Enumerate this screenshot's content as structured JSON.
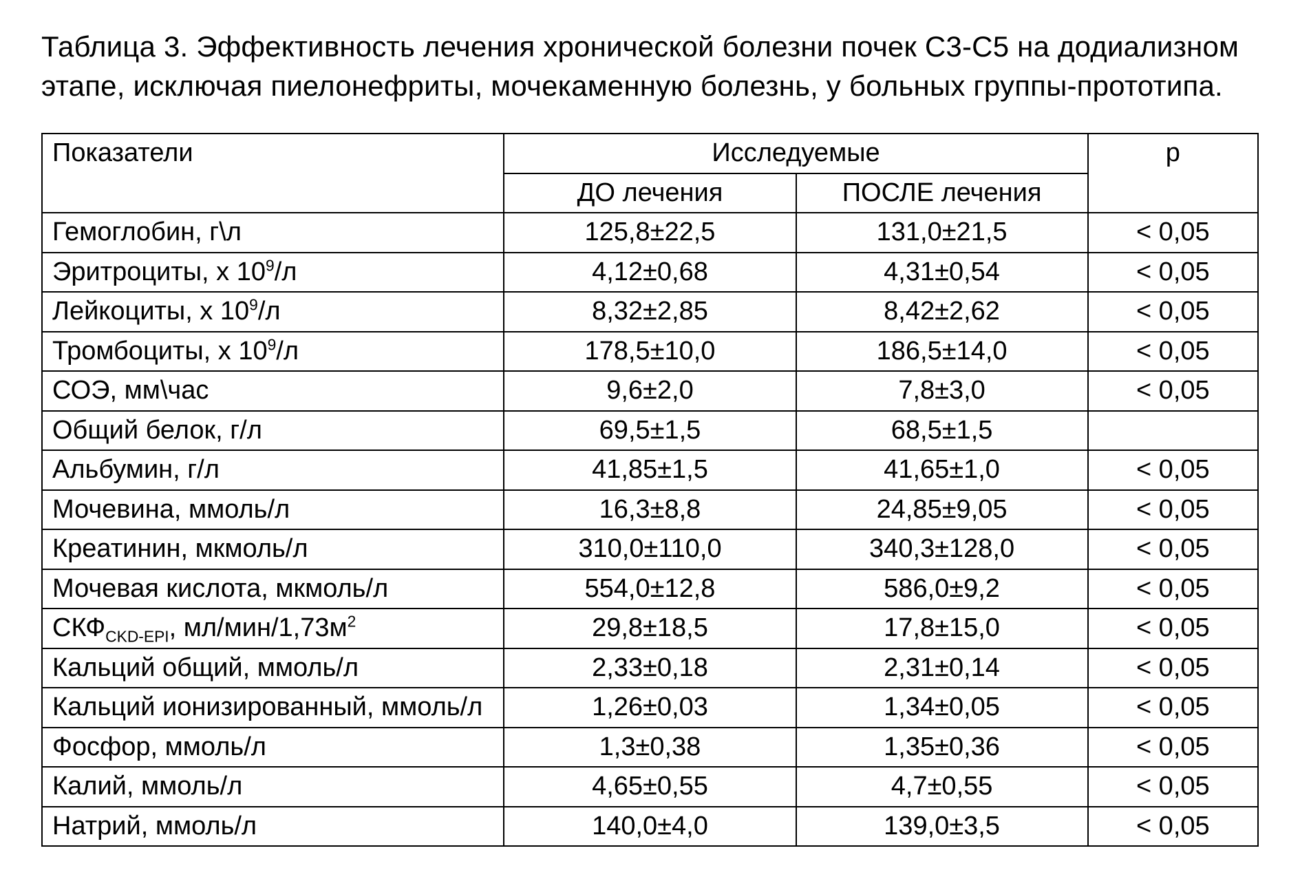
{
  "title": "Таблица 3. Эффективность лечения хронической болезни почек С3-С5 на додиализном этапе, исключая пиелонефриты, мочекаменную болезнь, у больных группы-прототипа.",
  "table": {
    "type": "table",
    "columns": {
      "label": "Показатели",
      "group": "Исследуемые",
      "before": "ДО лечения",
      "after": "ПОСЛЕ лечения",
      "p": "p"
    },
    "rows": [
      {
        "label_html": "Гемоглобин, г\\л",
        "before": "125,8±22,5",
        "after": "131,0±21,5",
        "p": "< 0,05"
      },
      {
        "label_html": "Эритроциты, х 10<sup>9</sup>/л",
        "before": "4,12±0,68",
        "after": "4,31±0,54",
        "p": "< 0,05"
      },
      {
        "label_html": "Лейкоциты, х 10<sup>9</sup>/л",
        "before": "8,32±2,85",
        "after": "8,42±2,62",
        "p": "< 0,05"
      },
      {
        "label_html": "Тромбоциты, х 10<sup>9</sup>/л",
        "before": "178,5±10,0",
        "after": "186,5±14,0",
        "p": "< 0,05"
      },
      {
        "label_html": "СОЭ, мм\\час",
        "before": "9,6±2,0",
        "after": "7,8±3,0",
        "p": "< 0,05"
      },
      {
        "label_html": "Общий белок, г/л",
        "before": "69,5±1,5",
        "after": "68,5±1,5",
        "p": ""
      },
      {
        "label_html": "Альбумин, г/л",
        "before": "41,85±1,5",
        "after": "41,65±1,0",
        "p": "< 0,05"
      },
      {
        "label_html": "Мочевина, ммоль/л",
        "before": "16,3±8,8",
        "after": "24,85±9,05",
        "p": "< 0,05"
      },
      {
        "label_html": "Креатинин, мкмоль/л",
        "before": "310,0±110,0",
        "after": "340,3±128,0",
        "p": "< 0,05"
      },
      {
        "label_html": "Мочевая кислота, мкмоль/л",
        "before": "554,0±12,8",
        "after": "586,0±9,2",
        "p": "< 0,05"
      },
      {
        "label_html": "СКФ<sub>CKD-EPI</sub>, мл/мин/1,73м<sup>2</sup>",
        "before": "29,8±18,5",
        "after": "17,8±15,0",
        "p": "< 0,05"
      },
      {
        "label_html": "Кальций общий, ммоль/л",
        "before": "2,33±0,18",
        "after": "2,31±0,14",
        "p": "< 0,05"
      },
      {
        "label_html": "Кальций ионизированный, ммоль/л",
        "before": "1,26±0,03",
        "after": "1,34±0,05",
        "p": "< 0,05"
      },
      {
        "label_html": "Фосфор, ммоль/л",
        "before": "1,3±0,38",
        "after": "1,35±0,36",
        "p": "< 0,05"
      },
      {
        "label_html": "Калий, ммоль/л",
        "before": "4,65±0,55",
        "after": "4,7±0,55",
        "p": "< 0,05"
      },
      {
        "label_html": "Натрий, ммоль/л",
        "before": "140,0±4,0",
        "after": "139,0±3,5",
        "p": "< 0,05"
      }
    ],
    "background_color": "#ffffff",
    "border_color": "#000000",
    "font_size_pt": 28,
    "col_widths_pct": [
      38,
      24,
      24,
      14
    ],
    "alignments": [
      "left",
      "center",
      "center",
      "center"
    ]
  }
}
